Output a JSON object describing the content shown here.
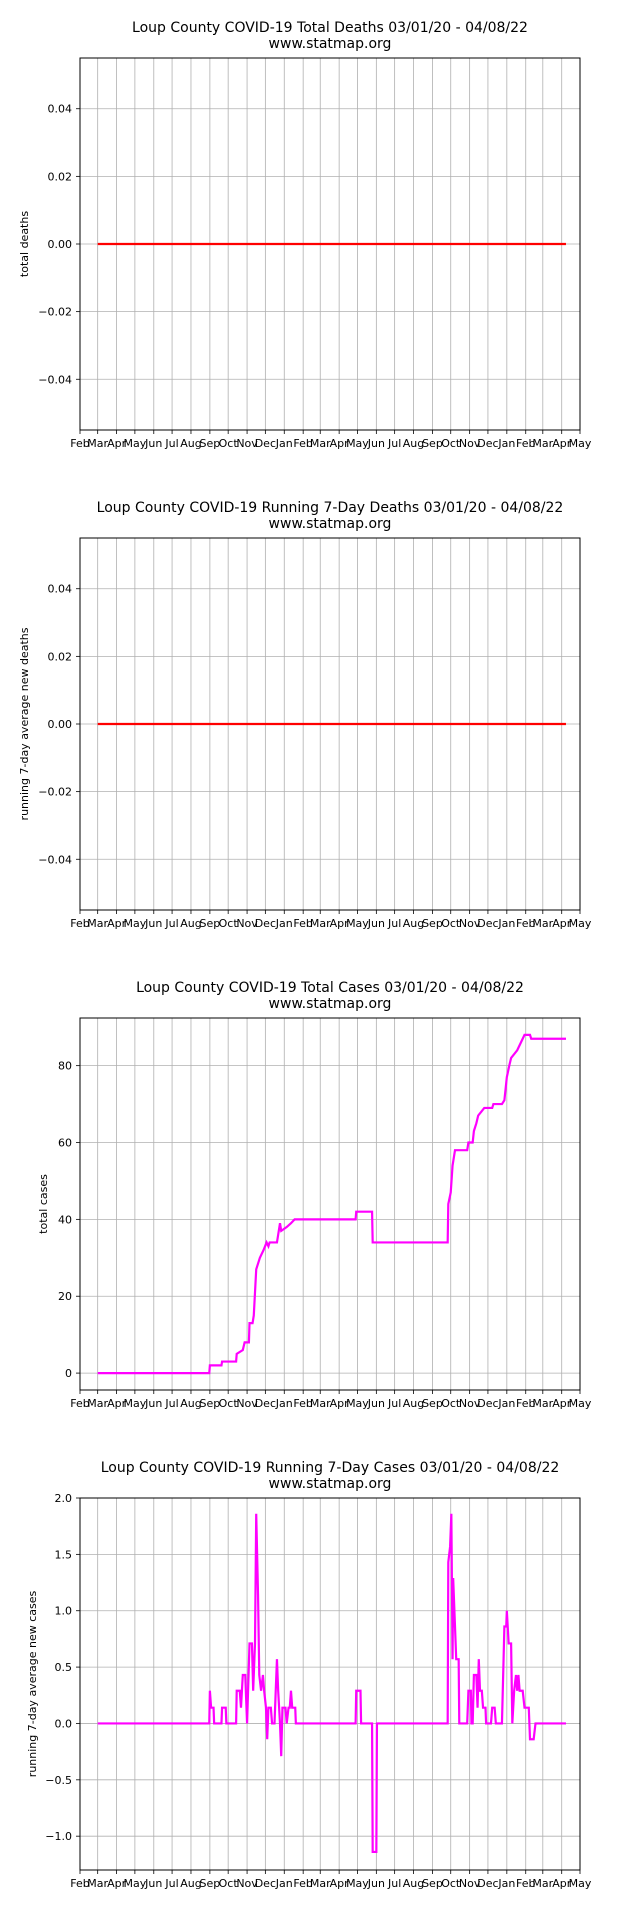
{
  "chart_data": [
    {
      "type": "line",
      "title": "Loup County COVID-19 Total Deaths 03/01/20 - 04/08/22",
      "subtitle": "www.statmap.org",
      "ylabel": "total deaths",
      "ylim": [
        -0.055,
        0.055
      ],
      "yticks": [
        0.04,
        0.02,
        0.0,
        -0.02,
        -0.04
      ],
      "ytick_labels": [
        "0.04",
        "0.02",
        "0.00",
        "−0.02",
        "−0.04"
      ],
      "color": "#ff0000",
      "grid": true,
      "series": [
        {
          "points": [
            [
              "2020-03-01",
              0
            ],
            [
              "2022-04-08",
              0
            ]
          ]
        }
      ]
    },
    {
      "type": "line",
      "title": "Loup County COVID-19 Running 7-Day Deaths 03/01/20 - 04/08/22",
      "subtitle": "www.statmap.org",
      "ylabel": "running 7-day average new deaths",
      "ylim": [
        -0.055,
        0.055
      ],
      "yticks": [
        0.04,
        0.02,
        0.0,
        -0.02,
        -0.04
      ],
      "ytick_labels": [
        "0.04",
        "0.02",
        "0.00",
        "−0.02",
        "−0.04"
      ],
      "color": "#ff0000",
      "grid": true,
      "series": [
        {
          "points": [
            [
              "2020-03-01",
              0
            ],
            [
              "2022-04-08",
              0
            ]
          ]
        }
      ]
    },
    {
      "type": "line",
      "title": "Loup County COVID-19 Total Cases 03/01/20 - 04/08/22",
      "subtitle": "www.statmap.org",
      "ylabel": "total cases",
      "ylim": [
        -4.4,
        92.4
      ],
      "yticks": [
        80,
        60,
        40,
        20,
        0
      ],
      "ytick_labels": [
        "80",
        "60",
        "40",
        "20",
        "0"
      ],
      "color": "#ff00ff",
      "grid": true,
      "series": [
        {
          "points": [
            [
              "2020-03-01",
              0
            ],
            [
              "2020-08-31",
              0
            ],
            [
              "2020-09-01",
              2
            ],
            [
              "2020-09-20",
              2
            ],
            [
              "2020-09-21",
              3
            ],
            [
              "2020-10-14",
              3
            ],
            [
              "2020-10-15",
              5
            ],
            [
              "2020-10-25",
              6
            ],
            [
              "2020-10-28",
              8
            ],
            [
              "2020-11-04",
              8
            ],
            [
              "2020-11-05",
              13
            ],
            [
              "2020-11-10",
              13
            ],
            [
              "2020-11-12",
              15
            ],
            [
              "2020-11-16",
              27
            ],
            [
              "2020-11-22",
              30
            ],
            [
              "2020-11-28",
              32
            ],
            [
              "2020-12-03",
              34
            ],
            [
              "2020-12-06",
              33
            ],
            [
              "2020-12-08",
              34
            ],
            [
              "2020-12-20",
              34
            ],
            [
              "2020-12-22",
              36
            ],
            [
              "2020-12-25",
              39
            ],
            [
              "2020-12-27",
              37
            ],
            [
              "2021-01-05",
              38
            ],
            [
              "2021-01-12",
              39
            ],
            [
              "2021-01-18",
              40
            ],
            [
              "2021-04-28",
              40
            ],
            [
              "2021-04-29",
              42
            ],
            [
              "2021-05-25",
              42
            ],
            [
              "2021-05-26",
              34
            ],
            [
              "2021-09-26",
              34
            ],
            [
              "2021-09-27",
              44
            ],
            [
              "2021-10-01",
              47
            ],
            [
              "2021-10-04",
              54
            ],
            [
              "2021-10-08",
              58
            ],
            [
              "2021-10-28",
              58
            ],
            [
              "2021-10-30",
              60
            ],
            [
              "2021-11-06",
              60
            ],
            [
              "2021-11-08",
              63
            ],
            [
              "2021-11-12",
              65
            ],
            [
              "2021-11-15",
              67
            ],
            [
              "2021-11-20",
              68
            ],
            [
              "2021-11-25",
              69
            ],
            [
              "2021-12-08",
              69
            ],
            [
              "2021-12-10",
              70
            ],
            [
              "2021-12-24",
              70
            ],
            [
              "2021-12-28",
              71
            ],
            [
              "2022-01-01",
              77
            ],
            [
              "2022-01-05",
              80
            ],
            [
              "2022-01-08",
              82
            ],
            [
              "2022-01-18",
              84
            ],
            [
              "2022-01-24",
              86
            ],
            [
              "2022-01-30",
              88
            ],
            [
              "2022-02-08",
              88
            ],
            [
              "2022-02-10",
              87
            ],
            [
              "2022-04-08",
              87
            ]
          ]
        }
      ]
    },
    {
      "type": "line",
      "title": "Loup County COVID-19 Running 7-Day Cases 03/01/20 - 04/08/22",
      "subtitle": "www.statmap.org",
      "ylabel": "running 7-day average new cases",
      "ylim": [
        -1.3,
        2.0
      ],
      "yticks": [
        2.0,
        1.5,
        1.0,
        0.5,
        0.0,
        -0.5,
        -1.0
      ],
      "ytick_labels": [
        "2.0",
        "1.5",
        "1.0",
        "0.5",
        "0.0",
        "−0.5",
        "−1.0"
      ],
      "color": "#ff00ff",
      "grid": true,
      "series": [
        {
          "points": [
            [
              "2020-03-01",
              0
            ],
            [
              "2020-08-31",
              0
            ],
            [
              "2020-09-01",
              0.29
            ],
            [
              "2020-09-03",
              0.14
            ],
            [
              "2020-09-07",
              0.14
            ],
            [
              "2020-09-08",
              0
            ],
            [
              "2020-09-20",
              0
            ],
            [
              "2020-09-21",
              0.14
            ],
            [
              "2020-09-27",
              0.14
            ],
            [
              "2020-09-28",
              0
            ],
            [
              "2020-10-14",
              0
            ],
            [
              "2020-10-15",
              0.29
            ],
            [
              "2020-10-20",
              0.29
            ],
            [
              "2020-10-22",
              0.14
            ],
            [
              "2020-10-25",
              0.43
            ],
            [
              "2020-10-29",
              0.43
            ],
            [
              "2020-11-01",
              0
            ],
            [
              "2020-11-05",
              0.71
            ],
            [
              "2020-11-09",
              0.71
            ],
            [
              "2020-11-11",
              0.29
            ],
            [
              "2020-11-14",
              0.71
            ],
            [
              "2020-11-16",
              1.86
            ],
            [
              "2020-11-19",
              1.14
            ],
            [
              "2020-11-21",
              0.43
            ],
            [
              "2020-11-24",
              0.29
            ],
            [
              "2020-11-27",
              0.43
            ],
            [
              "2020-11-29",
              0.29
            ],
            [
              "2020-12-02",
              0.14
            ],
            [
              "2020-12-04",
              -0.14
            ],
            [
              "2020-12-06",
              0.14
            ],
            [
              "2020-12-10",
              0.14
            ],
            [
              "2020-12-12",
              0
            ],
            [
              "2020-12-16",
              0
            ],
            [
              "2020-12-18",
              0.29
            ],
            [
              "2020-12-20",
              0.57
            ],
            [
              "2020-12-22",
              0.29
            ],
            [
              "2020-12-25",
              0
            ],
            [
              "2020-12-27",
              -0.29
            ],
            [
              "2020-12-29",
              0.14
            ],
            [
              "2021-01-03",
              0.14
            ],
            [
              "2021-01-05",
              0
            ],
            [
              "2021-01-08",
              0.14
            ],
            [
              "2021-01-10",
              0.14
            ],
            [
              "2021-01-12",
              0.29
            ],
            [
              "2021-01-14",
              0.14
            ],
            [
              "2021-01-19",
              0.14
            ],
            [
              "2021-01-20",
              0
            ],
            [
              "2021-04-28",
              0
            ],
            [
              "2021-04-29",
              0.29
            ],
            [
              "2021-05-06",
              0.29
            ],
            [
              "2021-05-07",
              0
            ],
            [
              "2021-05-25",
              0
            ],
            [
              "2021-05-26",
              -1.14
            ],
            [
              "2021-06-01",
              -1.14
            ],
            [
              "2021-06-02",
              0
            ],
            [
              "2021-09-26",
              0
            ],
            [
              "2021-09-27",
              1.43
            ],
            [
              "2021-09-30",
              1.57
            ],
            [
              "2021-10-02",
              1.86
            ],
            [
              "2021-10-04",
              0.57
            ],
            [
              "2021-10-05",
              1.29
            ],
            [
              "2021-10-08",
              0.86
            ],
            [
              "2021-10-10",
              0.57
            ],
            [
              "2021-10-14",
              0.57
            ],
            [
              "2021-10-15",
              0
            ],
            [
              "2021-10-28",
              0
            ],
            [
              "2021-10-30",
              0.29
            ],
            [
              "2021-11-03",
              0.29
            ],
            [
              "2021-11-04",
              0
            ],
            [
              "2021-11-06",
              0
            ],
            [
              "2021-11-08",
              0.43
            ],
            [
              "2021-11-12",
              0.43
            ],
            [
              "2021-11-14",
              0.14
            ],
            [
              "2021-11-16",
              0.57
            ],
            [
              "2021-11-18",
              0.29
            ],
            [
              "2021-11-21",
              0.29
            ],
            [
              "2021-11-23",
              0.14
            ],
            [
              "2021-11-27",
              0.14
            ],
            [
              "2021-11-28",
              0
            ],
            [
              "2021-12-06",
              0
            ],
            [
              "2021-12-08",
              0.14
            ],
            [
              "2021-12-12",
              0.14
            ],
            [
              "2021-12-14",
              0
            ],
            [
              "2021-12-24",
              0
            ],
            [
              "2021-12-28",
              0.86
            ],
            [
              "2021-12-31",
              0.86
            ],
            [
              "2022-01-01",
              1.0
            ],
            [
              "2022-01-04",
              0.71
            ],
            [
              "2022-01-08",
              0.71
            ],
            [
              "2022-01-10",
              0
            ],
            [
              "2022-01-13",
              0.29
            ],
            [
              "2022-01-16",
              0.43
            ],
            [
              "2022-01-18",
              0.29
            ],
            [
              "2022-01-20",
              0.43
            ],
            [
              "2022-01-22",
              0.29
            ],
            [
              "2022-01-27",
              0.29
            ],
            [
              "2022-01-30",
              0.14
            ],
            [
              "2022-02-06",
              0.14
            ],
            [
              "2022-02-08",
              -0.14
            ],
            [
              "2022-02-14",
              -0.14
            ],
            [
              "2022-02-17",
              0
            ],
            [
              "2022-04-08",
              0
            ]
          ]
        }
      ]
    }
  ],
  "axes": {
    "x_start_date": "2020-02-01",
    "x_end_date": "2022-05-01",
    "x_tick_labels": [
      "Feb",
      "Mar",
      "Apr",
      "May",
      "Jun",
      "Jul",
      "Aug",
      "Sep",
      "Oct",
      "Nov",
      "Dec",
      "Jan",
      "Feb",
      "Mar",
      "Apr",
      "May",
      "Jun",
      "Jul",
      "Aug",
      "Sep",
      "Oct",
      "Nov",
      "Dec",
      "Jan",
      "Feb",
      "Mar",
      "Apr",
      "May"
    ]
  }
}
